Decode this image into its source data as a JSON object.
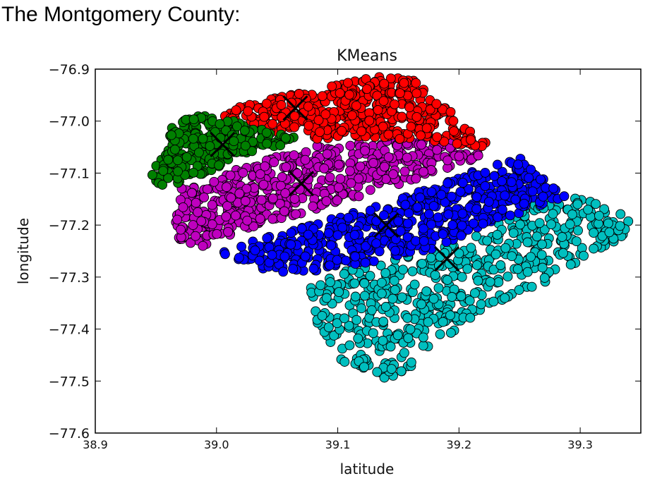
{
  "heading": "The Montgomery County:",
  "chart_data": {
    "type": "scatter",
    "title": "KMeans",
    "xlabel": "latitude",
    "ylabel": "longitude",
    "xlim": [
      38.9,
      39.35
    ],
    "ylim": [
      -77.6,
      -76.9
    ],
    "x_ticks": [
      38.9,
      39.0,
      39.1,
      39.2,
      39.3
    ],
    "x_tick_labels": [
      "38.9",
      "39.0",
      "39.1",
      "39.2",
      "39.3"
    ],
    "y_ticks": [
      -76.9,
      -77.0,
      -77.1,
      -77.2,
      -77.3,
      -77.4,
      -77.5,
      -77.6
    ],
    "y_tick_labels": [
      "−76.9",
      "−77.0",
      "−77.1",
      "−77.2",
      "−77.3",
      "−77.4",
      "−77.5",
      "−77.6"
    ],
    "grid": false,
    "legend": "none",
    "series": [
      {
        "color": "#00bfbf",
        "centroid": [
          39.19,
          -77.265
        ],
        "polygon": [
          [
            39.08,
            -77.3
          ],
          [
            39.13,
            -77.275
          ],
          [
            39.18,
            -77.245
          ],
          [
            39.23,
            -77.2
          ],
          [
            39.27,
            -77.15
          ],
          [
            39.3,
            -77.145
          ],
          [
            39.345,
            -77.19
          ],
          [
            39.33,
            -77.235
          ],
          [
            39.28,
            -77.3
          ],
          [
            39.22,
            -77.36
          ],
          [
            39.17,
            -77.45
          ],
          [
            39.15,
            -77.515
          ],
          [
            39.12,
            -77.48
          ],
          [
            39.1,
            -77.46
          ],
          [
            39.085,
            -77.4
          ],
          [
            39.07,
            -77.36
          ]
        ]
      },
      {
        "color": "#0000ff",
        "centroid": [
          39.14,
          -77.2
        ],
        "polygon": [
          [
            39.0,
            -77.25
          ],
          [
            39.07,
            -77.205
          ],
          [
            39.15,
            -77.15
          ],
          [
            39.22,
            -77.09
          ],
          [
            39.25,
            -77.07
          ],
          [
            39.27,
            -77.11
          ],
          [
            39.29,
            -77.145
          ],
          [
            39.24,
            -77.185
          ],
          [
            39.18,
            -77.245
          ],
          [
            39.12,
            -77.275
          ],
          [
            39.07,
            -77.295
          ],
          [
            39.04,
            -77.285
          ]
        ]
      },
      {
        "color": "#bf00bf",
        "centroid": [
          39.07,
          -77.12
        ],
        "polygon": [
          [
            38.97,
            -77.13
          ],
          [
            39.02,
            -77.09
          ],
          [
            39.08,
            -77.045
          ],
          [
            39.16,
            -77.035
          ],
          [
            39.21,
            -77.035
          ],
          [
            39.23,
            -77.06
          ],
          [
            39.14,
            -77.13
          ],
          [
            39.06,
            -77.185
          ],
          [
            39.0,
            -77.23
          ],
          [
            38.98,
            -77.25
          ],
          [
            38.965,
            -77.22
          ]
        ]
      },
      {
        "color": "#ff0000",
        "centroid": [
          39.065,
          -76.975
        ],
        "polygon": [
          [
            39.0,
            -76.985
          ],
          [
            39.03,
            -76.965
          ],
          [
            39.07,
            -76.945
          ],
          [
            39.12,
            -76.915
          ],
          [
            39.16,
            -76.915
          ],
          [
            39.18,
            -76.96
          ],
          [
            39.21,
            -77.01
          ],
          [
            39.225,
            -77.05
          ],
          [
            39.17,
            -77.04
          ],
          [
            39.12,
            -77.03
          ],
          [
            39.08,
            -77.035
          ],
          [
            39.04,
            -77.02
          ]
        ]
      },
      {
        "color": "#008000",
        "centroid": [
          39.005,
          -77.045
        ],
        "polygon": [
          [
            38.945,
            -77.115
          ],
          [
            38.965,
            -77.0
          ],
          [
            38.99,
            -76.985
          ],
          [
            39.03,
            -77.01
          ],
          [
            39.07,
            -77.035
          ],
          [
            39.02,
            -77.07
          ],
          [
            38.98,
            -77.11
          ],
          [
            38.96,
            -77.13
          ]
        ]
      }
    ]
  }
}
